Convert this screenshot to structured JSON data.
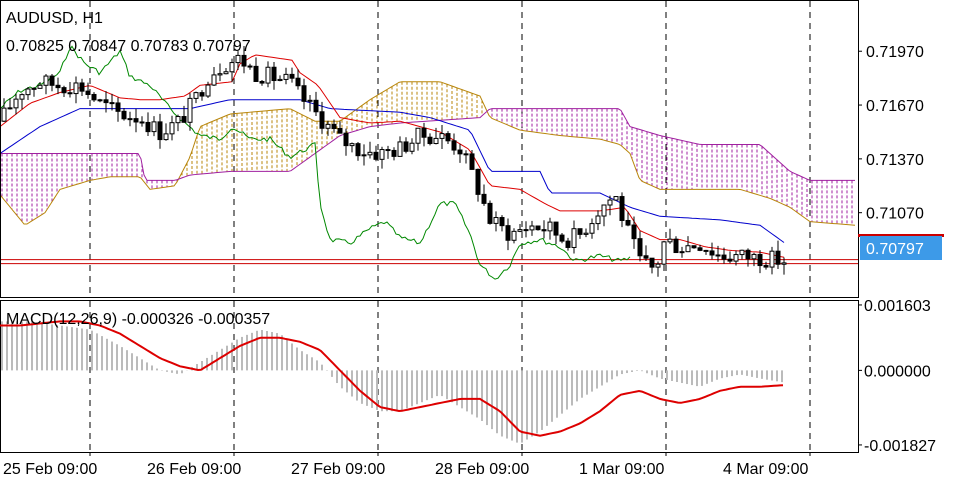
{
  "chart_data": [
    {
      "type": "candlestick",
      "panel": "main",
      "symbol_label": "AUDUSD, H1",
      "ohlc_label": "0.70825 0.70847 0.70783 0.70797",
      "last_price": 0.70797,
      "last_price_label": "0.70797",
      "ylim": [
        0.706,
        0.7225
      ],
      "y_ticks": [
        0.7197,
        0.7167,
        0.7137,
        0.7107
      ],
      "y_tick_labels": [
        "0.71970",
        "0.71670",
        "0.71370",
        "0.71070"
      ],
      "x_tick_labels": [
        "25 Feb 09:00",
        "26 Feb 09:00",
        "27 Feb 09:00",
        "28 Feb 09:00",
        "1 Mar 09:00",
        "4 Mar 09:00"
      ],
      "grid": "vertical-dashed",
      "indicators": [
        "Ichimoku Kinko Hyo (tenkan-sen, kijun-sen, chikou span, kumo cloud)"
      ],
      "colors": {
        "tenkan": "#dd0000",
        "kijun": "#0000cc",
        "chikou": "#008800",
        "kumo_bull": "#b8860b",
        "kumo_bear": "#a020a0",
        "price_line": "#cc0000",
        "price_label_bg": "#3d9ae8"
      },
      "tenkan_anchors": [
        [
          0,
          0.7155
        ],
        [
          30,
          0.7168
        ],
        [
          60,
          0.7174
        ],
        [
          90,
          0.7178
        ],
        [
          120,
          0.7171
        ],
        [
          140,
          0.717
        ],
        [
          160,
          0.717
        ],
        [
          185,
          0.7172
        ],
        [
          200,
          0.7178
        ],
        [
          232,
          0.718
        ],
        [
          240,
          0.719
        ],
        [
          255,
          0.7195
        ],
        [
          292,
          0.7192
        ],
        [
          300,
          0.7185
        ],
        [
          318,
          0.7178
        ],
        [
          340,
          0.716
        ],
        [
          370,
          0.7157
        ],
        [
          400,
          0.7158
        ],
        [
          440,
          0.7152
        ],
        [
          470,
          0.7142
        ],
        [
          490,
          0.7122
        ],
        [
          520,
          0.712
        ],
        [
          545,
          0.7112
        ],
        [
          560,
          0.7108
        ],
        [
          600,
          0.7108
        ],
        [
          625,
          0.711
        ],
        [
          640,
          0.7097
        ],
        [
          660,
          0.7092
        ],
        [
          680,
          0.7092
        ],
        [
          705,
          0.7088
        ],
        [
          730,
          0.7086
        ],
        [
          760,
          0.7085
        ],
        [
          785,
          0.7082
        ]
      ],
      "kijun_anchors": [
        [
          0,
          0.714
        ],
        [
          40,
          0.7155
        ],
        [
          80,
          0.7165
        ],
        [
          100,
          0.7165
        ],
        [
          190,
          0.7165
        ],
        [
          230,
          0.717
        ],
        [
          300,
          0.717
        ],
        [
          330,
          0.7165
        ],
        [
          400,
          0.7163
        ],
        [
          430,
          0.716
        ],
        [
          470,
          0.7153
        ],
        [
          490,
          0.713
        ],
        [
          540,
          0.713
        ],
        [
          550,
          0.7118
        ],
        [
          600,
          0.7118
        ],
        [
          630,
          0.711
        ],
        [
          660,
          0.7105
        ],
        [
          720,
          0.7103
        ],
        [
          760,
          0.71
        ],
        [
          785,
          0.709
        ]
      ],
      "chikou_anchors": [
        [
          0,
          0.7165
        ],
        [
          20,
          0.7175
        ],
        [
          40,
          0.7178
        ],
        [
          60,
          0.7185
        ],
        [
          70,
          0.72
        ],
        [
          85,
          0.719
        ],
        [
          100,
          0.7185
        ],
        [
          120,
          0.7197
        ],
        [
          130,
          0.7183
        ],
        [
          150,
          0.7178
        ],
        [
          170,
          0.7165
        ],
        [
          185,
          0.7157
        ],
        [
          200,
          0.715
        ],
        [
          220,
          0.7148
        ],
        [
          232,
          0.7155
        ],
        [
          250,
          0.7148
        ],
        [
          270,
          0.7148
        ],
        [
          290,
          0.7138
        ],
        [
          315,
          0.7145
        ],
        [
          320,
          0.7112
        ],
        [
          330,
          0.7092
        ],
        [
          350,
          0.709
        ],
        [
          370,
          0.7098
        ],
        [
          385,
          0.7102
        ],
        [
          400,
          0.7093
        ],
        [
          420,
          0.709
        ],
        [
          440,
          0.7112
        ],
        [
          455,
          0.7112
        ],
        [
          470,
          0.7095
        ],
        [
          480,
          0.7078
        ],
        [
          495,
          0.707
        ],
        [
          510,
          0.7078
        ],
        [
          520,
          0.709
        ],
        [
          540,
          0.7092
        ],
        [
          560,
          0.7088
        ],
        [
          575,
          0.708
        ],
        [
          600,
          0.7083
        ],
        [
          620,
          0.708
        ],
        [
          632,
          0.7082
        ]
      ],
      "span_a_anchors": [
        [
          0,
          0.7117
        ],
        [
          25,
          0.71
        ],
        [
          45,
          0.7107
        ],
        [
          60,
          0.712
        ],
        [
          90,
          0.7125
        ],
        [
          110,
          0.7127
        ],
        [
          140,
          0.7127
        ],
        [
          150,
          0.712
        ],
        [
          175,
          0.7122
        ],
        [
          190,
          0.7138
        ],
        [
          200,
          0.7155
        ],
        [
          230,
          0.7162
        ],
        [
          290,
          0.7165
        ],
        [
          315,
          0.7158
        ],
        [
          340,
          0.7158
        ],
        [
          370,
          0.717
        ],
        [
          400,
          0.718
        ],
        [
          440,
          0.718
        ],
        [
          480,
          0.7172
        ],
        [
          490,
          0.716
        ],
        [
          520,
          0.7153
        ],
        [
          560,
          0.715
        ],
        [
          600,
          0.7148
        ],
        [
          620,
          0.7145
        ],
        [
          630,
          0.714
        ],
        [
          640,
          0.7125
        ],
        [
          660,
          0.712
        ],
        [
          700,
          0.712
        ],
        [
          740,
          0.712
        ],
        [
          770,
          0.7115
        ],
        [
          790,
          0.711
        ],
        [
          810,
          0.7102
        ],
        [
          855,
          0.71
        ]
      ],
      "span_b_anchors": [
        [
          0,
          0.714
        ],
        [
          60,
          0.714
        ],
        [
          120,
          0.714
        ],
        [
          140,
          0.714
        ],
        [
          145,
          0.7125
        ],
        [
          175,
          0.7125
        ],
        [
          190,
          0.7128
        ],
        [
          230,
          0.713
        ],
        [
          290,
          0.713
        ],
        [
          315,
          0.714
        ],
        [
          340,
          0.715
        ],
        [
          370,
          0.7155
        ],
        [
          400,
          0.7157
        ],
        [
          480,
          0.716
        ],
        [
          490,
          0.7165
        ],
        [
          620,
          0.7165
        ],
        [
          630,
          0.7155
        ],
        [
          660,
          0.715
        ],
        [
          700,
          0.7145
        ],
        [
          760,
          0.7145
        ],
        [
          790,
          0.713
        ],
        [
          810,
          0.7125
        ],
        [
          855,
          0.7125
        ]
      ],
      "candle_anchors": [
        [
          0,
          0.7158
        ],
        [
          20,
          0.7175
        ],
        [
          40,
          0.718
        ],
        [
          60,
          0.7178
        ],
        [
          80,
          0.7178
        ],
        [
          100,
          0.7168
        ],
        [
          120,
          0.7162
        ],
        [
          140,
          0.716
        ],
        [
          160,
          0.7152
        ],
        [
          180,
          0.7158
        ],
        [
          195,
          0.717
        ],
        [
          210,
          0.7185
        ],
        [
          225,
          0.719
        ],
        [
          240,
          0.7193
        ],
        [
          255,
          0.7185
        ],
        [
          270,
          0.7183
        ],
        [
          290,
          0.718
        ],
        [
          300,
          0.7172
        ],
        [
          320,
          0.716
        ],
        [
          340,
          0.7148
        ],
        [
          360,
          0.7142
        ],
        [
          380,
          0.714
        ],
        [
          400,
          0.7143
        ],
        [
          420,
          0.715
        ],
        [
          440,
          0.715
        ],
        [
          460,
          0.7143
        ],
        [
          475,
          0.7125
        ],
        [
          490,
          0.7103
        ],
        [
          510,
          0.7095
        ],
        [
          530,
          0.71
        ],
        [
          550,
          0.7098
        ],
        [
          565,
          0.7092
        ],
        [
          580,
          0.7095
        ],
        [
          600,
          0.711
        ],
        [
          615,
          0.7117
        ],
        [
          625,
          0.71
        ],
        [
          640,
          0.708
        ],
        [
          655,
          0.7075
        ],
        [
          665,
          0.7092
        ],
        [
          680,
          0.7088
        ],
        [
          700,
          0.709
        ],
        [
          720,
          0.7083
        ],
        [
          740,
          0.7083
        ],
        [
          760,
          0.7082
        ],
        [
          785,
          0.708
        ]
      ]
    },
    {
      "type": "macd",
      "panel": "indicator",
      "label": "MACD(12,26,9) -0.000326 -0.000357",
      "ylim": [
        -0.002,
        0.0017
      ],
      "y_ticks": [
        0.001603,
        0.0,
        -0.001827
      ],
      "y_tick_labels": [
        "0.001603",
        "0.000000",
        "-0.001827"
      ],
      "colors": {
        "histogram": "#bbbbbb",
        "signal": "#dd0000"
      },
      "histogram_anchors": [
        [
          0,
          0.0012
        ],
        [
          30,
          0.0012
        ],
        [
          60,
          0.0011
        ],
        [
          90,
          0.001
        ],
        [
          120,
          0.0006
        ],
        [
          140,
          0.0003
        ],
        [
          160,
          0.0
        ],
        [
          180,
          -0.0001
        ],
        [
          200,
          0.0002
        ],
        [
          220,
          0.0005
        ],
        [
          240,
          0.0008
        ],
        [
          260,
          0.001
        ],
        [
          280,
          0.0009
        ],
        [
          300,
          0.0005
        ],
        [
          320,
          0.0002
        ],
        [
          340,
          -0.0004
        ],
        [
          360,
          -0.0008
        ],
        [
          380,
          -0.001
        ],
        [
          400,
          -0.001
        ],
        [
          420,
          -0.0008
        ],
        [
          440,
          -0.0006
        ],
        [
          460,
          -0.0009
        ],
        [
          480,
          -0.0012
        ],
        [
          500,
          -0.0016
        ],
        [
          520,
          -0.0018
        ],
        [
          540,
          -0.0015
        ],
        [
          560,
          -0.0011
        ],
        [
          580,
          -0.0007
        ],
        [
          600,
          -0.0004
        ],
        [
          620,
          -0.0001
        ],
        [
          640,
          0.0
        ],
        [
          660,
          -0.0002
        ],
        [
          680,
          -0.0003
        ],
        [
          700,
          -0.0004
        ],
        [
          720,
          -0.0002
        ],
        [
          740,
          -0.0001
        ],
        [
          760,
          -0.0002
        ],
        [
          785,
          -0.0003
        ]
      ],
      "signal_anchors": [
        [
          0,
          0.0011
        ],
        [
          20,
          0.0011
        ],
        [
          40,
          0.00115
        ],
        [
          60,
          0.0012
        ],
        [
          80,
          0.0012
        ],
        [
          100,
          0.0011
        ],
        [
          120,
          0.0009
        ],
        [
          140,
          0.0006
        ],
        [
          160,
          0.0003
        ],
        [
          180,
          0.0001
        ],
        [
          200,
          0.0
        ],
        [
          220,
          0.0003
        ],
        [
          240,
          0.0006
        ],
        [
          260,
          0.0008
        ],
        [
          280,
          0.0008
        ],
        [
          300,
          0.0007
        ],
        [
          320,
          0.0005
        ],
        [
          340,
          0.0
        ],
        [
          360,
          -0.0005
        ],
        [
          380,
          -0.0009
        ],
        [
          400,
          -0.001
        ],
        [
          420,
          -0.0009
        ],
        [
          440,
          -0.0008
        ],
        [
          460,
          -0.0007
        ],
        [
          480,
          -0.0007
        ],
        [
          500,
          -0.001
        ],
        [
          520,
          -0.0015
        ],
        [
          540,
          -0.0016
        ],
        [
          560,
          -0.0015
        ],
        [
          580,
          -0.0013
        ],
        [
          600,
          -0.001
        ],
        [
          620,
          -0.0006
        ],
        [
          640,
          -0.0005
        ],
        [
          660,
          -0.0007
        ],
        [
          680,
          -0.0008
        ],
        [
          700,
          -0.0007
        ],
        [
          720,
          -0.0005
        ],
        [
          740,
          -0.0004
        ],
        [
          760,
          -0.0004
        ],
        [
          785,
          -0.00036
        ]
      ]
    }
  ]
}
